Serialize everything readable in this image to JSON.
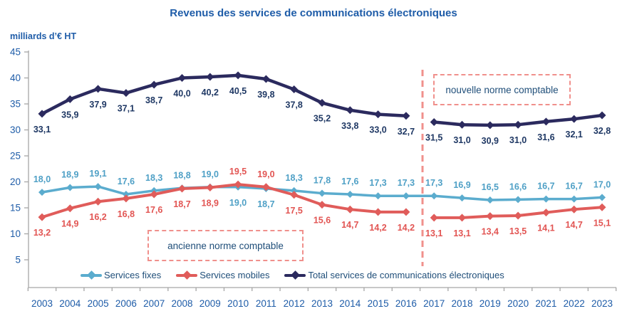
{
  "title": "Revenus des services de communications électroniques",
  "y_axis_label": "milliards d’€ HT",
  "annotations": {
    "old_norm": "ancienne norme comptable",
    "new_norm": "nouvelle norme comptable"
  },
  "legend": [
    {
      "label": "Services fixes",
      "color_key": "fixes"
    },
    {
      "label": "Services mobiles",
      "color_key": "mobiles"
    },
    {
      "label": "Total services de communications électroniques",
      "color_key": "total"
    }
  ],
  "colors": {
    "title": "#1E5CA8",
    "tick_label": "#1E5CA8",
    "anno": "#1F4E79",
    "axis": "#A6A6A6",
    "divider": "#F0908C",
    "fixes": "#5BACCE",
    "fixes_label": "#4FA0C6",
    "mobiles": "#E05C5A",
    "mobiles_label": "#E25553",
    "total": "#2B2A5E",
    "total_label": "#1F3864"
  },
  "chart_data": {
    "type": "line",
    "title": "Revenus des services de communications électroniques",
    "ylabel": "milliards d'€ HT",
    "ylim": [
      0,
      45
    ],
    "yticks": [
      5,
      10,
      15,
      20,
      25,
      30,
      35,
      40,
      45
    ],
    "grid": false,
    "legend_position": "bottom",
    "decimal_separator": ",",
    "divider_between_years": [
      2016,
      2017
    ],
    "x": [
      2003,
      2004,
      2005,
      2006,
      2007,
      2008,
      2009,
      2010,
      2011,
      2012,
      2013,
      2014,
      2015,
      2016,
      2017,
      2018,
      2019,
      2020,
      2021,
      2022,
      2023
    ],
    "series": [
      {
        "name": "Services fixes",
        "color_key": "fixes",
        "label_color_key": "fixes_label",
        "width": 3.5,
        "marker": 5,
        "segments": [
          [
            0,
            20
          ]
        ],
        "values": [
          18.0,
          18.9,
          19.1,
          17.6,
          18.3,
          18.8,
          19.0,
          19.0,
          18.7,
          18.3,
          17.8,
          17.6,
          17.3,
          17.3,
          17.3,
          16.9,
          16.5,
          16.6,
          16.7,
          16.7,
          17.0
        ],
        "label_sides": [
          "a",
          "a",
          "a",
          "a",
          "a",
          "a",
          "a",
          "b",
          "b",
          "a",
          "a",
          "a",
          "a",
          "a",
          "a",
          "a",
          "a",
          "a",
          "a",
          "a",
          "a"
        ]
      },
      {
        "name": "Services mobiles",
        "color_key": "mobiles",
        "label_color_key": "mobiles_label",
        "width": 4,
        "marker": 5.5,
        "segments": [
          [
            0,
            13
          ],
          [
            14,
            20
          ]
        ],
        "values": [
          13.2,
          14.9,
          16.2,
          16.8,
          17.6,
          18.7,
          18.9,
          19.5,
          19.0,
          17.5,
          15.6,
          14.7,
          14.2,
          14.2,
          13.1,
          13.1,
          13.4,
          13.5,
          14.1,
          14.7,
          15.1
        ],
        "label_sides": [
          "b",
          "b",
          "b",
          "b",
          "b",
          "b",
          "b",
          "a",
          "a",
          "b",
          "b",
          "b",
          "b",
          "b",
          "b",
          "b",
          "b",
          "b",
          "b",
          "b",
          "b"
        ]
      },
      {
        "name": "Total services de communications électroniques",
        "color_key": "total",
        "label_color_key": "total_label",
        "width": 4.5,
        "marker": 5.5,
        "segments": [
          [
            0,
            13
          ],
          [
            14,
            20
          ]
        ],
        "values": [
          33.1,
          35.9,
          37.9,
          37.1,
          38.7,
          40.0,
          40.2,
          40.5,
          39.8,
          37.8,
          35.2,
          33.8,
          33.0,
          32.7,
          31.5,
          31.0,
          30.9,
          31.0,
          31.6,
          32.1,
          32.8
        ],
        "label_sides": [
          "b",
          "b",
          "b",
          "b",
          "b",
          "b",
          "b",
          "b",
          "b",
          "b",
          "b",
          "b",
          "b",
          "b",
          "b",
          "b",
          "b",
          "b",
          "b",
          "b",
          "b"
        ]
      }
    ]
  }
}
